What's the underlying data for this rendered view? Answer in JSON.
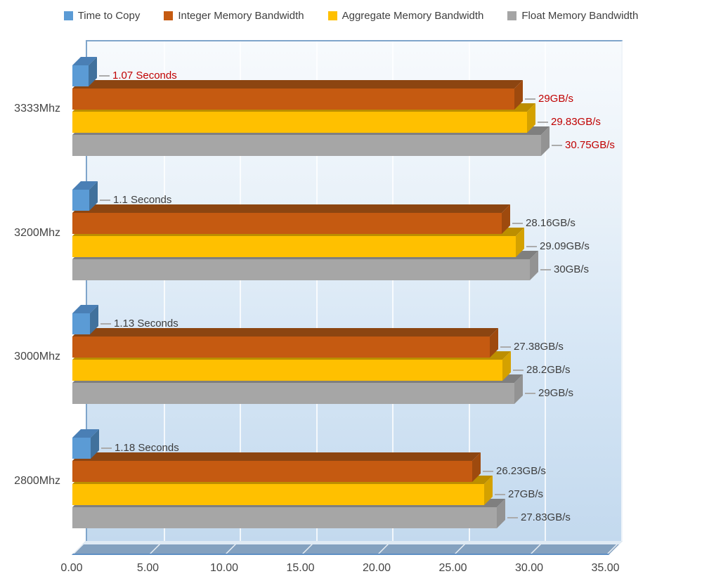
{
  "legend": {
    "items": [
      {
        "label": "Time to Copy",
        "color": "#5B9BD5"
      },
      {
        "label": "Integer Memory Bandwidth",
        "color": "#C55A11"
      },
      {
        "label": "Aggregate Memory Bandwidth",
        "color": "#FFC000"
      },
      {
        "label": "Float Memory Bandwidth",
        "color": "#A5A5A5"
      }
    ]
  },
  "chart_data": {
    "type": "bar",
    "orientation": "horizontal",
    "title": "",
    "categories": [
      "3333Mhz",
      "3200Mhz",
      "3000Mhz",
      "2800Mhz"
    ],
    "series": [
      {
        "name": "Time to Copy",
        "unit": "Seconds",
        "values": [
          1.07,
          1.1,
          1.13,
          1.18
        ],
        "labels": [
          "1.07 Seconds",
          "1.1 Seconds",
          "1.13 Seconds",
          "1.18 Seconds"
        ],
        "colors": {
          "front": "#5B9BD5",
          "top": "#4A7FB5",
          "side": "#41719C"
        }
      },
      {
        "name": "Integer Memory Bandwidth",
        "unit": "GB/s",
        "values": [
          29,
          28.16,
          27.38,
          26.23
        ],
        "labels": [
          "29GB/s",
          "28.16GB/s",
          "27.38GB/s",
          "26.23GB/s"
        ],
        "colors": {
          "front": "#C55A11",
          "top": "#8C4511",
          "side": "#9E4A0E"
        }
      },
      {
        "name": "Aggregate Memory Bandwidth",
        "unit": "GB/s",
        "values": [
          29.83,
          29.09,
          28.2,
          27
        ],
        "labels": [
          "29.83GB/s",
          "29.09GB/s",
          "28.2GB/s",
          "27GB/s"
        ],
        "colors": {
          "front": "#FFC000",
          "top": "#BC8E00",
          "side": "#D4A100"
        }
      },
      {
        "name": "Float Memory Bandwidth",
        "unit": "GB/s",
        "values": [
          30.75,
          30,
          29,
          27.83
        ],
        "labels": [
          "30.75GB/s",
          "30GB/s",
          "29GB/s",
          "27.83GB/s"
        ],
        "colors": {
          "front": "#A6A6A6",
          "top": "#7F7F7F",
          "side": "#939393"
        }
      }
    ],
    "data_label_colors_per_category": [
      "#C00000",
      "#3D3D3D",
      "#3D3D3D",
      "#3D3D3D"
    ],
    "x_axis": {
      "min": 0,
      "max": 35,
      "step": 5,
      "tick_labels": [
        "0.00",
        "5.00",
        "10.00",
        "15.00",
        "20.00",
        "25.00",
        "30.00",
        "35.00"
      ],
      "grid": true
    },
    "legend_position": "top"
  },
  "style_colors": {
    "wall_border": "#7FA5CB",
    "floor": "#84A1BF",
    "floor_edge": "#5E8FC4",
    "leader_line": "#ABABAB",
    "axis_text": "#444444",
    "value_label_highlight": "#C00000"
  }
}
